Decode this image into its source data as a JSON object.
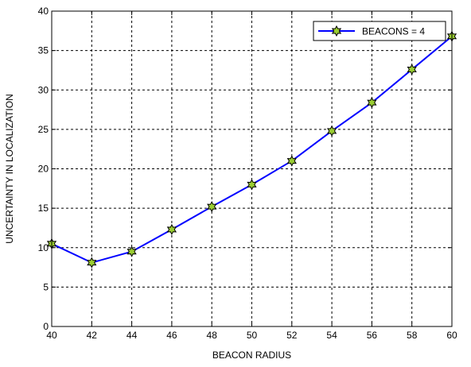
{
  "colors": {
    "series": "#0000ff",
    "marker_face": "#9acd32",
    "marker_edge": "#000000",
    "grid": "#000000",
    "axes": "#000000",
    "background": "#ffffff"
  },
  "chart_data": {
    "type": "line",
    "title": "",
    "xlabel": "BEACON RADIUS",
    "ylabel": "UNCERTAINTY IN LOCALIZATION",
    "xlim": [
      40,
      60
    ],
    "ylim": [
      0,
      40
    ],
    "xticks": [
      40,
      42,
      44,
      46,
      48,
      50,
      52,
      54,
      56,
      58,
      60
    ],
    "yticks": [
      0,
      5,
      10,
      15,
      20,
      25,
      30,
      35,
      40
    ],
    "grid": true,
    "grid_style": "dashed",
    "legend": "top-right",
    "series": [
      {
        "name": "BEACONS = 4",
        "marker": "hexagram",
        "x": [
          40,
          42,
          44,
          46,
          48,
          50,
          52,
          54,
          56,
          58,
          60
        ],
        "y": [
          10.5,
          8.1,
          9.5,
          12.3,
          15.2,
          18.0,
          21.0,
          24.8,
          28.4,
          32.6,
          36.8
        ]
      }
    ]
  }
}
